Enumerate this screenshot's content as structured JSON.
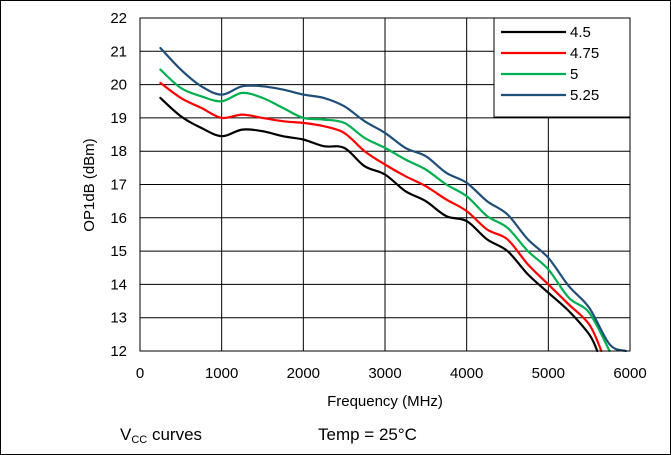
{
  "chart_data": {
    "type": "line",
    "xlabel": "Frequency (MHz)",
    "ylabel": "OP1dB (dBm)",
    "xlim": [
      0,
      6000
    ],
    "ylim": [
      12,
      22
    ],
    "xticks": [
      "0",
      "1000",
      "2000",
      "3000",
      "4000",
      "5000",
      "6000"
    ],
    "yticks": [
      "12",
      "13",
      "14",
      "15",
      "16",
      "17",
      "18",
      "19",
      "20",
      "21",
      "22"
    ],
    "grid": true,
    "legend_position": "top-right",
    "series": [
      {
        "name": "4.5",
        "color": "#000000",
        "points": [
          [
            250,
            19.6
          ],
          [
            500,
            19.05
          ],
          [
            750,
            18.7
          ],
          [
            1000,
            18.45
          ],
          [
            1250,
            18.65
          ],
          [
            1500,
            18.6
          ],
          [
            1750,
            18.45
          ],
          [
            2000,
            18.35
          ],
          [
            2250,
            18.15
          ],
          [
            2500,
            18.1
          ],
          [
            2750,
            17.55
          ],
          [
            3000,
            17.3
          ],
          [
            3250,
            16.8
          ],
          [
            3500,
            16.5
          ],
          [
            3750,
            16.05
          ],
          [
            4000,
            15.9
          ],
          [
            4250,
            15.35
          ],
          [
            4500,
            15.0
          ],
          [
            4750,
            14.3
          ],
          [
            5000,
            13.75
          ],
          [
            5250,
            13.2
          ],
          [
            5500,
            12.5
          ],
          [
            5600,
            12.0
          ]
        ]
      },
      {
        "name": "4.75",
        "color": "#ff0000",
        "points": [
          [
            250,
            20.05
          ],
          [
            500,
            19.6
          ],
          [
            750,
            19.3
          ],
          [
            1000,
            19.0
          ],
          [
            1250,
            19.1
          ],
          [
            1500,
            19.0
          ],
          [
            1750,
            18.9
          ],
          [
            2000,
            18.85
          ],
          [
            2250,
            18.75
          ],
          [
            2500,
            18.55
          ],
          [
            2750,
            18.0
          ],
          [
            3000,
            17.6
          ],
          [
            3250,
            17.25
          ],
          [
            3500,
            16.95
          ],
          [
            3750,
            16.55
          ],
          [
            4000,
            16.2
          ],
          [
            4250,
            15.65
          ],
          [
            4500,
            15.35
          ],
          [
            4750,
            14.6
          ],
          [
            5000,
            14.0
          ],
          [
            5250,
            13.4
          ],
          [
            5500,
            12.8
          ],
          [
            5650,
            12.0
          ]
        ]
      },
      {
        "name": "5",
        "color": "#00b050",
        "points": [
          [
            250,
            20.45
          ],
          [
            500,
            19.9
          ],
          [
            750,
            19.65
          ],
          [
            1000,
            19.5
          ],
          [
            1250,
            19.75
          ],
          [
            1500,
            19.6
          ],
          [
            1750,
            19.3
          ],
          [
            2000,
            19.0
          ],
          [
            2250,
            18.95
          ],
          [
            2500,
            18.85
          ],
          [
            2750,
            18.4
          ],
          [
            3000,
            18.1
          ],
          [
            3250,
            17.75
          ],
          [
            3500,
            17.45
          ],
          [
            3750,
            17.0
          ],
          [
            4000,
            16.65
          ],
          [
            4250,
            16.05
          ],
          [
            4500,
            15.7
          ],
          [
            4750,
            15.0
          ],
          [
            5000,
            14.45
          ],
          [
            5250,
            13.6
          ],
          [
            5500,
            13.15
          ],
          [
            5750,
            12.0
          ]
        ]
      },
      {
        "name": "5.25",
        "color": "#1f4e79",
        "points": [
          [
            250,
            21.1
          ],
          [
            500,
            20.45
          ],
          [
            750,
            19.95
          ],
          [
            1000,
            19.7
          ],
          [
            1250,
            19.95
          ],
          [
            1500,
            19.95
          ],
          [
            1750,
            19.85
          ],
          [
            2000,
            19.7
          ],
          [
            2250,
            19.6
          ],
          [
            2500,
            19.35
          ],
          [
            2750,
            18.9
          ],
          [
            3000,
            18.55
          ],
          [
            3250,
            18.1
          ],
          [
            3500,
            17.85
          ],
          [
            3750,
            17.35
          ],
          [
            4000,
            17.05
          ],
          [
            4250,
            16.5
          ],
          [
            4500,
            16.1
          ],
          [
            4750,
            15.35
          ],
          [
            5000,
            14.8
          ],
          [
            5250,
            13.95
          ],
          [
            5500,
            13.3
          ],
          [
            5750,
            12.2
          ],
          [
            5950,
            12.0
          ]
        ]
      }
    ]
  },
  "captions": {
    "vcc_prefix": "V",
    "vcc_sub": "CC",
    "vcc_suffix": " curves",
    "temp": "Temp = 25°C"
  }
}
